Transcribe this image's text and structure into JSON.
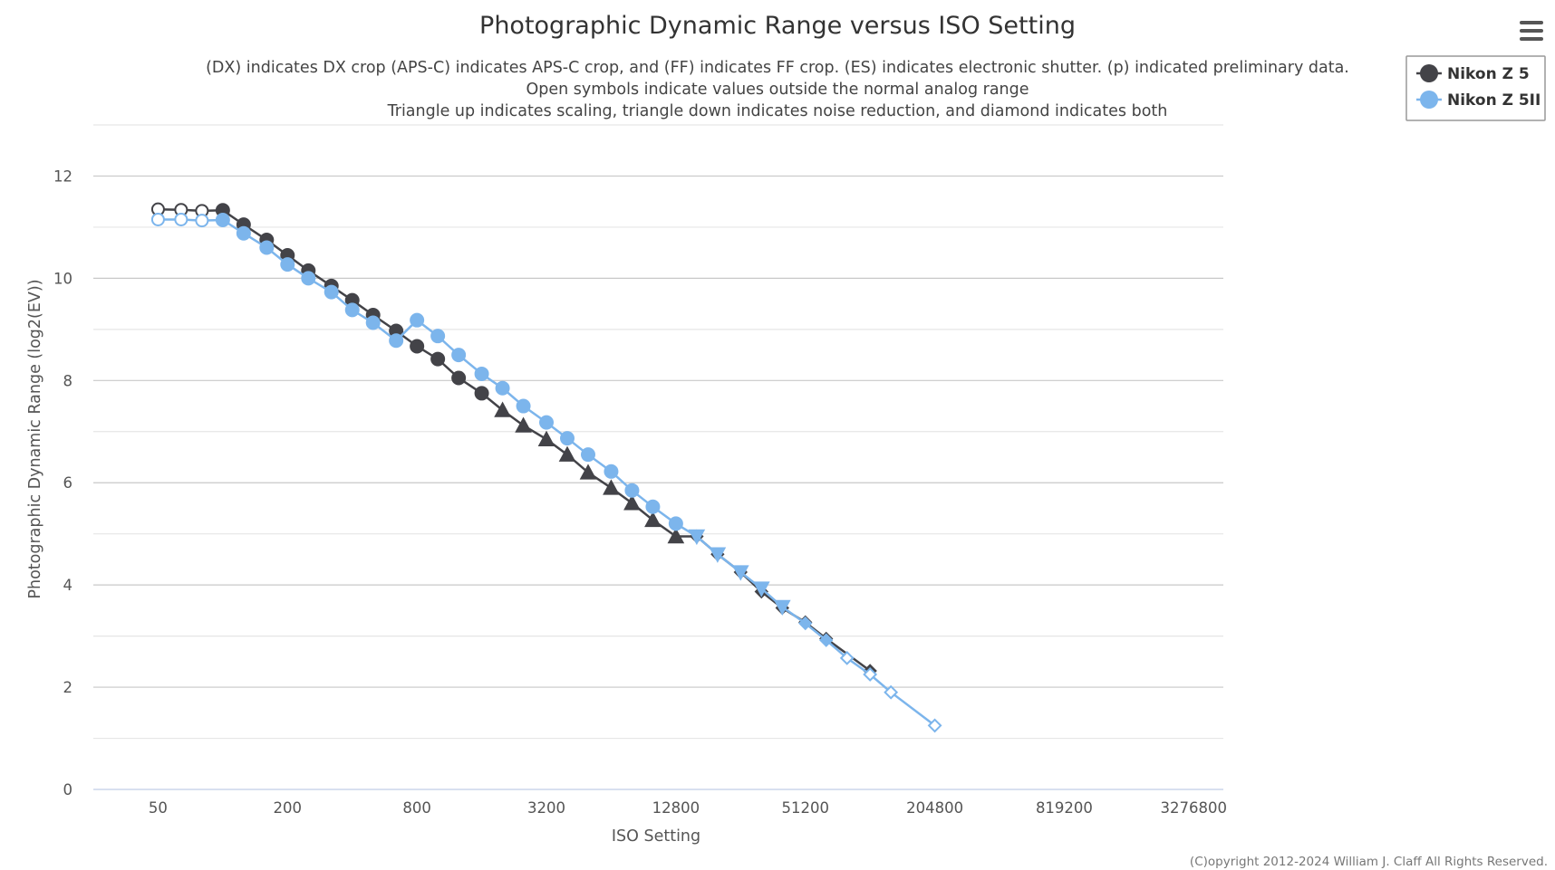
{
  "chart_data": {
    "type": "line",
    "title": "Photographic Dynamic Range versus ISO Setting",
    "subtitle": [
      "(DX) indicates DX crop (APS-C) indicates APS-C crop, and (FF) indicates FF crop. (ES) indicates electronic shutter. (p) indicated preliminary data.",
      "Open symbols indicate values outside the normal analog range",
      "Triangle up indicates scaling, triangle down indicates noise reduction, and diamond indicates both"
    ],
    "xlabel": "ISO Setting",
    "ylabel": "Photographic Dynamic Range (log2(EV))",
    "x_scale": "log2",
    "x_ticks": [
      50,
      200,
      800,
      3200,
      12800,
      51200,
      204800,
      819200,
      3276800
    ],
    "xlim": [
      25,
      4500000
    ],
    "y_ticks": [
      0,
      2,
      4,
      6,
      8,
      10,
      12
    ],
    "ylim": [
      0,
      13
    ],
    "grid": "horizontal",
    "legend_position": "top-right",
    "credits": "(C)opyright 2012-2024 William J. Claff All Rights Reserved.",
    "series": [
      {
        "name": "Nikon Z 5",
        "color": "#434348",
        "points": [
          {
            "iso": 50,
            "dr": 11.35,
            "marker": "circle-open"
          },
          {
            "iso": 64,
            "dr": 11.34,
            "marker": "circle-open"
          },
          {
            "iso": 80,
            "dr": 11.32,
            "marker": "circle-open"
          },
          {
            "iso": 100,
            "dr": 11.33,
            "marker": "circle"
          },
          {
            "iso": 125,
            "dr": 11.05,
            "marker": "circle"
          },
          {
            "iso": 160,
            "dr": 10.75,
            "marker": "circle"
          },
          {
            "iso": 200,
            "dr": 10.45,
            "marker": "circle"
          },
          {
            "iso": 250,
            "dr": 10.15,
            "marker": "circle"
          },
          {
            "iso": 320,
            "dr": 9.85,
            "marker": "circle"
          },
          {
            "iso": 400,
            "dr": 9.57,
            "marker": "circle"
          },
          {
            "iso": 500,
            "dr": 9.28,
            "marker": "circle"
          },
          {
            "iso": 640,
            "dr": 8.97,
            "marker": "circle"
          },
          {
            "iso": 800,
            "dr": 8.67,
            "marker": "circle"
          },
          {
            "iso": 1000,
            "dr": 8.42,
            "marker": "circle"
          },
          {
            "iso": 1250,
            "dr": 8.05,
            "marker": "circle"
          },
          {
            "iso": 1600,
            "dr": 7.75,
            "marker": "circle"
          },
          {
            "iso": 2000,
            "dr": 7.42,
            "marker": "triangle-up"
          },
          {
            "iso": 2500,
            "dr": 7.12,
            "marker": "triangle-up"
          },
          {
            "iso": 3200,
            "dr": 6.85,
            "marker": "triangle-up"
          },
          {
            "iso": 4000,
            "dr": 6.55,
            "marker": "triangle-up"
          },
          {
            "iso": 5000,
            "dr": 6.2,
            "marker": "triangle-up"
          },
          {
            "iso": 6400,
            "dr": 5.9,
            "marker": "triangle-up"
          },
          {
            "iso": 8000,
            "dr": 5.6,
            "marker": "triangle-up"
          },
          {
            "iso": 10000,
            "dr": 5.27,
            "marker": "triangle-up"
          },
          {
            "iso": 12800,
            "dr": 4.95,
            "marker": "triangle-up"
          },
          {
            "iso": 16000,
            "dr": 4.95,
            "marker": "diamond"
          },
          {
            "iso": 20000,
            "dr": 4.6,
            "marker": "diamond"
          },
          {
            "iso": 25600,
            "dr": 4.25,
            "marker": "diamond"
          },
          {
            "iso": 32000,
            "dr": 3.87,
            "marker": "diamond"
          },
          {
            "iso": 40000,
            "dr": 3.55,
            "marker": "diamond"
          },
          {
            "iso": 51200,
            "dr": 3.27,
            "marker": "diamond"
          },
          {
            "iso": 64000,
            "dr": 2.95,
            "marker": "diamond"
          },
          {
            "iso": 102400,
            "dr": 2.32,
            "marker": "diamond"
          }
        ]
      },
      {
        "name": "Nikon Z 5II",
        "color": "#7cb5ec",
        "points": [
          {
            "iso": 50,
            "dr": 11.15,
            "marker": "circle-open"
          },
          {
            "iso": 64,
            "dr": 11.15,
            "marker": "circle-open"
          },
          {
            "iso": 80,
            "dr": 11.13,
            "marker": "circle-open"
          },
          {
            "iso": 100,
            "dr": 11.14,
            "marker": "circle"
          },
          {
            "iso": 125,
            "dr": 10.88,
            "marker": "circle"
          },
          {
            "iso": 160,
            "dr": 10.6,
            "marker": "circle"
          },
          {
            "iso": 200,
            "dr": 10.27,
            "marker": "circle"
          },
          {
            "iso": 250,
            "dr": 10.0,
            "marker": "circle"
          },
          {
            "iso": 320,
            "dr": 9.73,
            "marker": "circle"
          },
          {
            "iso": 400,
            "dr": 9.38,
            "marker": "circle"
          },
          {
            "iso": 500,
            "dr": 9.13,
            "marker": "circle"
          },
          {
            "iso": 640,
            "dr": 8.78,
            "marker": "circle"
          },
          {
            "iso": 800,
            "dr": 9.18,
            "marker": "circle"
          },
          {
            "iso": 1000,
            "dr": 8.87,
            "marker": "circle"
          },
          {
            "iso": 1250,
            "dr": 8.5,
            "marker": "circle"
          },
          {
            "iso": 1600,
            "dr": 8.13,
            "marker": "circle"
          },
          {
            "iso": 2000,
            "dr": 7.85,
            "marker": "circle"
          },
          {
            "iso": 2500,
            "dr": 7.5,
            "marker": "circle"
          },
          {
            "iso": 3200,
            "dr": 7.18,
            "marker": "circle"
          },
          {
            "iso": 4000,
            "dr": 6.87,
            "marker": "circle"
          },
          {
            "iso": 5000,
            "dr": 6.55,
            "marker": "circle"
          },
          {
            "iso": 6400,
            "dr": 6.22,
            "marker": "circle"
          },
          {
            "iso": 8000,
            "dr": 5.85,
            "marker": "circle"
          },
          {
            "iso": 10000,
            "dr": 5.53,
            "marker": "circle"
          },
          {
            "iso": 12800,
            "dr": 5.2,
            "marker": "circle"
          },
          {
            "iso": 16000,
            "dr": 4.95,
            "marker": "triangle-down"
          },
          {
            "iso": 20000,
            "dr": 4.6,
            "marker": "triangle-down"
          },
          {
            "iso": 25600,
            "dr": 4.25,
            "marker": "triangle-down"
          },
          {
            "iso": 32000,
            "dr": 3.93,
            "marker": "triangle-down"
          },
          {
            "iso": 40000,
            "dr": 3.57,
            "marker": "triangle-down"
          },
          {
            "iso": 51200,
            "dr": 3.25,
            "marker": "diamond"
          },
          {
            "iso": 64000,
            "dr": 2.92,
            "marker": "diamond"
          },
          {
            "iso": 80000,
            "dr": 2.57,
            "marker": "diamond-open"
          },
          {
            "iso": 102400,
            "dr": 2.25,
            "marker": "diamond-open"
          },
          {
            "iso": 128000,
            "dr": 1.9,
            "marker": "diamond-open"
          },
          {
            "iso": 204800,
            "dr": 1.25,
            "marker": "diamond-open"
          }
        ]
      }
    ]
  },
  "menu": {
    "icon": "hamburger-menu-icon"
  }
}
